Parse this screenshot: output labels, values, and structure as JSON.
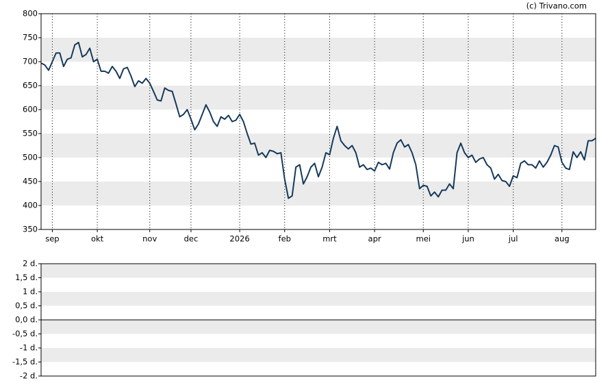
{
  "chart_data": [
    {
      "type": "line",
      "credit": "(c) Trivano.com",
      "color": "#15395b",
      "grid": true,
      "categories": [
        null,
        null,
        null,
        "sep",
        null,
        null,
        null,
        null,
        null,
        null,
        null,
        null,
        null,
        null,
        null,
        "okt",
        null,
        null,
        null,
        null,
        null,
        null,
        null,
        null,
        null,
        null,
        null,
        null,
        null,
        "nov",
        null,
        null,
        null,
        null,
        null,
        null,
        null,
        null,
        null,
        null,
        "dec",
        null,
        null,
        null,
        null,
        null,
        null,
        null,
        null,
        null,
        null,
        null,
        null,
        "2026",
        null,
        null,
        null,
        null,
        null,
        null,
        null,
        null,
        null,
        null,
        null,
        "feb",
        null,
        null,
        null,
        null,
        null,
        null,
        null,
        null,
        null,
        null,
        null,
        "mrt",
        null,
        null,
        null,
        null,
        null,
        null,
        null,
        null,
        null,
        null,
        null,
        "apr",
        null,
        null,
        null,
        null,
        null,
        null,
        null,
        null,
        null,
        null,
        null,
        null,
        "mei",
        null,
        null,
        null,
        null,
        null,
        null,
        null,
        null,
        null,
        null,
        null,
        "jun",
        null,
        null,
        null,
        null,
        null,
        null,
        null,
        null,
        null,
        null,
        null,
        "jul",
        null,
        null,
        null,
        null,
        null,
        null,
        null,
        null,
        null,
        null,
        null,
        null,
        "aug",
        null,
        null,
        null,
        null,
        null,
        null,
        null,
        null,
        null
      ],
      "values": [
        697,
        693,
        682,
        700,
        718,
        718,
        690,
        705,
        708,
        735,
        740,
        710,
        715,
        728,
        700,
        705,
        680,
        680,
        676,
        690,
        680,
        665,
        685,
        688,
        670,
        648,
        660,
        655,
        665,
        655,
        638,
        620,
        618,
        645,
        640,
        638,
        612,
        585,
        590,
        600,
        580,
        558,
        570,
        590,
        610,
        595,
        575,
        565,
        585,
        580,
        588,
        575,
        578,
        590,
        575,
        550,
        528,
        530,
        505,
        510,
        500,
        515,
        513,
        508,
        510,
        455,
        415,
        420,
        480,
        485,
        445,
        460,
        480,
        488,
        460,
        480,
        510,
        506,
        540,
        565,
        535,
        525,
        518,
        525,
        510,
        480,
        485,
        475,
        478,
        472,
        490,
        485,
        488,
        476,
        510,
        530,
        537,
        522,
        527,
        510,
        485,
        435,
        442,
        440,
        420,
        428,
        418,
        432,
        432,
        445,
        435,
        510,
        530,
        510,
        500,
        505,
        490,
        497,
        500,
        485,
        478,
        455,
        465,
        452,
        450,
        440,
        462,
        458,
        488,
        493,
        485,
        485,
        478,
        493,
        480,
        490,
        505,
        525,
        522,
        490,
        478,
        475,
        512,
        500,
        512,
        495,
        535,
        535,
        540
      ],
      "ylim": [
        350,
        800
      ],
      "yticks": [
        350,
        400,
        450,
        500,
        550,
        600,
        650,
        700,
        750,
        800
      ]
    },
    {
      "type": "bar",
      "grid": true,
      "ylim": [
        -2,
        2
      ],
      "yticks": [
        {
          "value": -2,
          "label": "-2 d."
        },
        {
          "value": -1.5,
          "label": "-1,5 d."
        },
        {
          "value": -1,
          "label": "-1 d."
        },
        {
          "value": -0.5,
          "label": "-0,5 d."
        },
        {
          "value": 0,
          "label": "0,0 d."
        },
        {
          "value": 0.5,
          "label": "0,5 d."
        },
        {
          "value": 1,
          "label": "1 d."
        },
        {
          "value": 1.5,
          "label": "1,5 d."
        },
        {
          "value": 2,
          "label": "2 d."
        }
      ]
    }
  ]
}
